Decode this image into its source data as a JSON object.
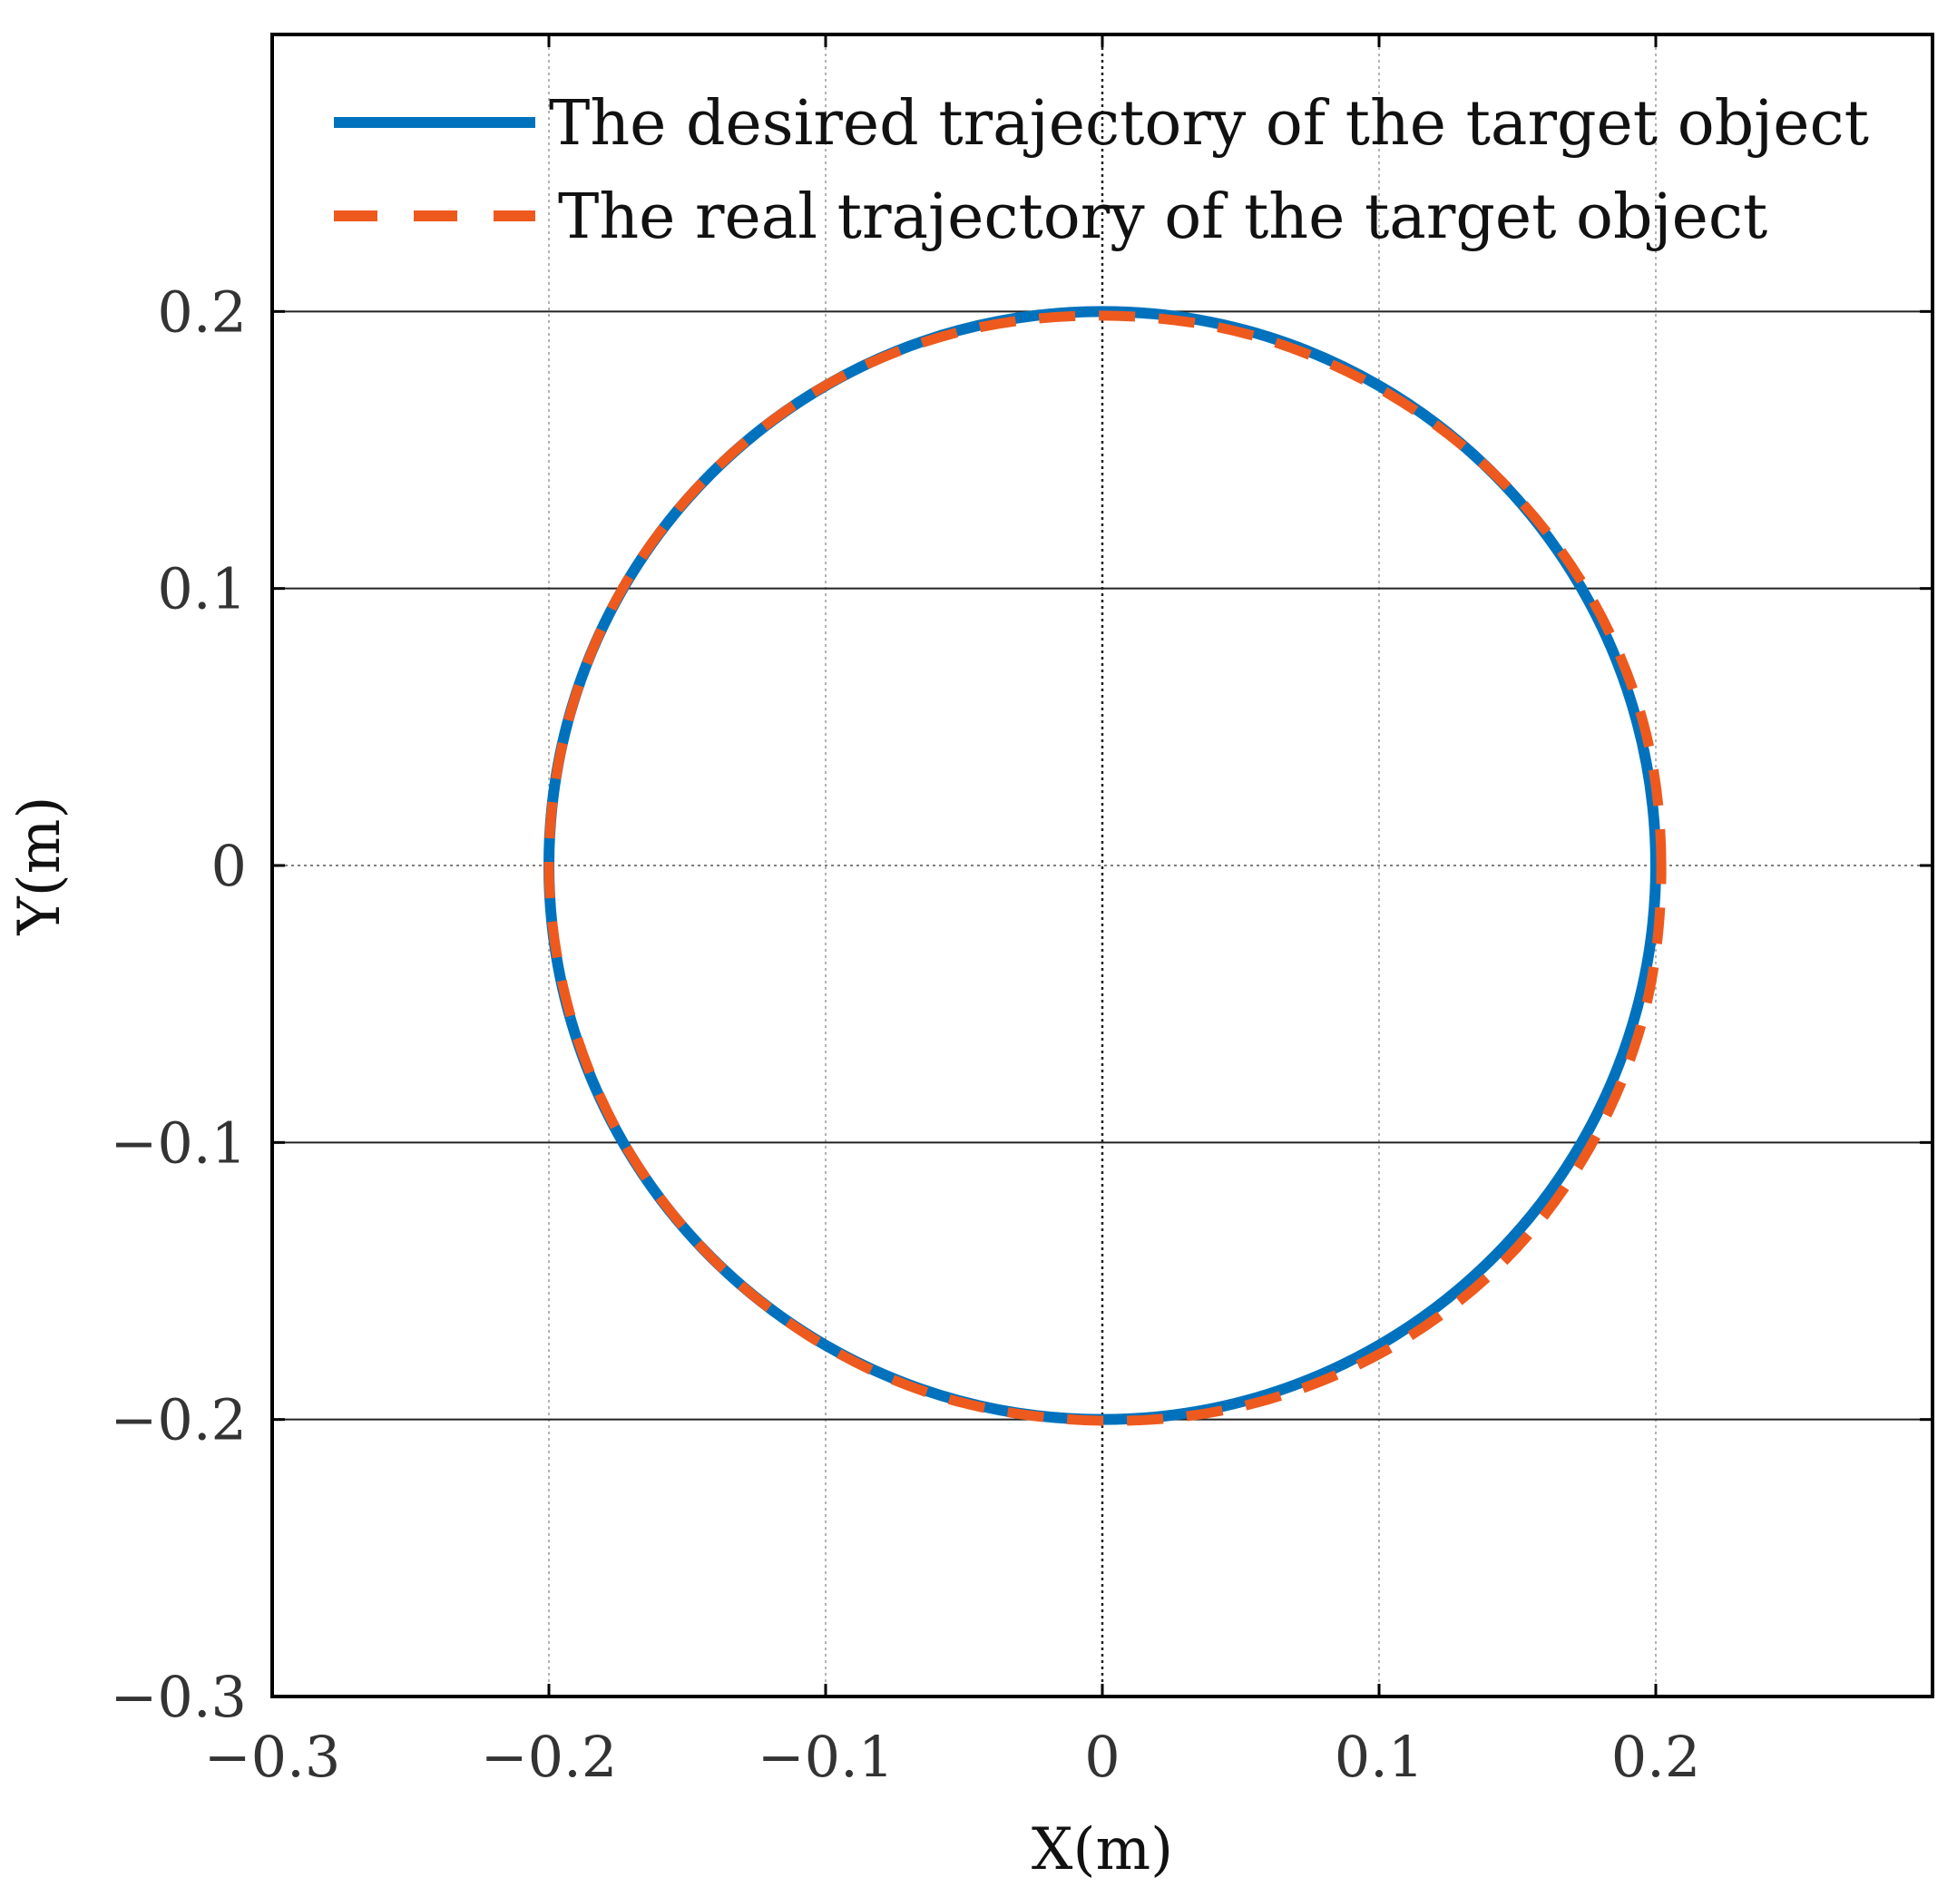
{
  "chart_data": {
    "type": "line",
    "title": "",
    "xlabel": "X(m)",
    "ylabel": "Y(m)",
    "xlim": [
      -0.3,
      0.3
    ],
    "ylim": [
      -0.3,
      0.3
    ],
    "x_ticks": [
      -0.3,
      -0.2,
      -0.1,
      0,
      0.1,
      0.2
    ],
    "y_ticks": [
      -0.3,
      -0.2,
      -0.1,
      0,
      0.1,
      0.2
    ],
    "x_tick_labels": [
      "−0.3",
      "−0.2",
      "−0.1",
      "0",
      "0.1",
      "0.2"
    ],
    "y_tick_labels": [
      "−0.3",
      "−0.2",
      "−0.1",
      "0",
      "0.1",
      "0.2"
    ],
    "grid": true,
    "legend_position": "top",
    "series": [
      {
        "name": "The desired trajectory of the target object",
        "color": "#0072BD",
        "style": "solid",
        "x": [
          0.2,
          0.1932,
          0.1732,
          0.1414,
          0.1,
          0.0518,
          0,
          -0.0518,
          -0.1,
          -0.1414,
          -0.1732,
          -0.1932,
          -0.2,
          -0.1932,
          -0.1732,
          -0.1414,
          -0.1,
          -0.0518,
          0,
          0.0518,
          0.1,
          0.1414,
          0.1732,
          0.1932,
          0.2
        ],
        "y": [
          0,
          0.0518,
          0.1,
          0.1414,
          0.1732,
          0.1932,
          0.2,
          0.1932,
          0.1732,
          0.1414,
          0.1,
          0.0518,
          0,
          -0.0518,
          -0.1,
          -0.1414,
          -0.1732,
          -0.1932,
          -0.2,
          -0.1932,
          -0.1732,
          -0.1414,
          -0.1,
          -0.0518,
          0
        ]
      },
      {
        "name": "The real trajectory of the target object",
        "color": "#EE5A1E",
        "style": "dashed",
        "x": [
          0.202,
          0.1955,
          0.175,
          0.1425,
          0.1005,
          0.0518,
          0,
          -0.0522,
          -0.1005,
          -0.1418,
          -0.1735,
          -0.1932,
          -0.2,
          -0.1928,
          -0.1728,
          -0.141,
          -0.0995,
          -0.0512,
          0.0035,
          0.0555,
          0.104,
          0.1455,
          0.1765,
          0.196,
          0.202
        ],
        "y": [
          0,
          0.0515,
          0.0995,
          0.1405,
          0.172,
          0.192,
          0.1985,
          0.1925,
          0.173,
          0.1412,
          0.0998,
          0.0515,
          0,
          -0.052,
          -0.1003,
          -0.1418,
          -0.1738,
          -0.1938,
          -0.2005,
          -0.194,
          -0.1742,
          -0.1425,
          -0.1012,
          -0.0528,
          0
        ]
      }
    ]
  }
}
